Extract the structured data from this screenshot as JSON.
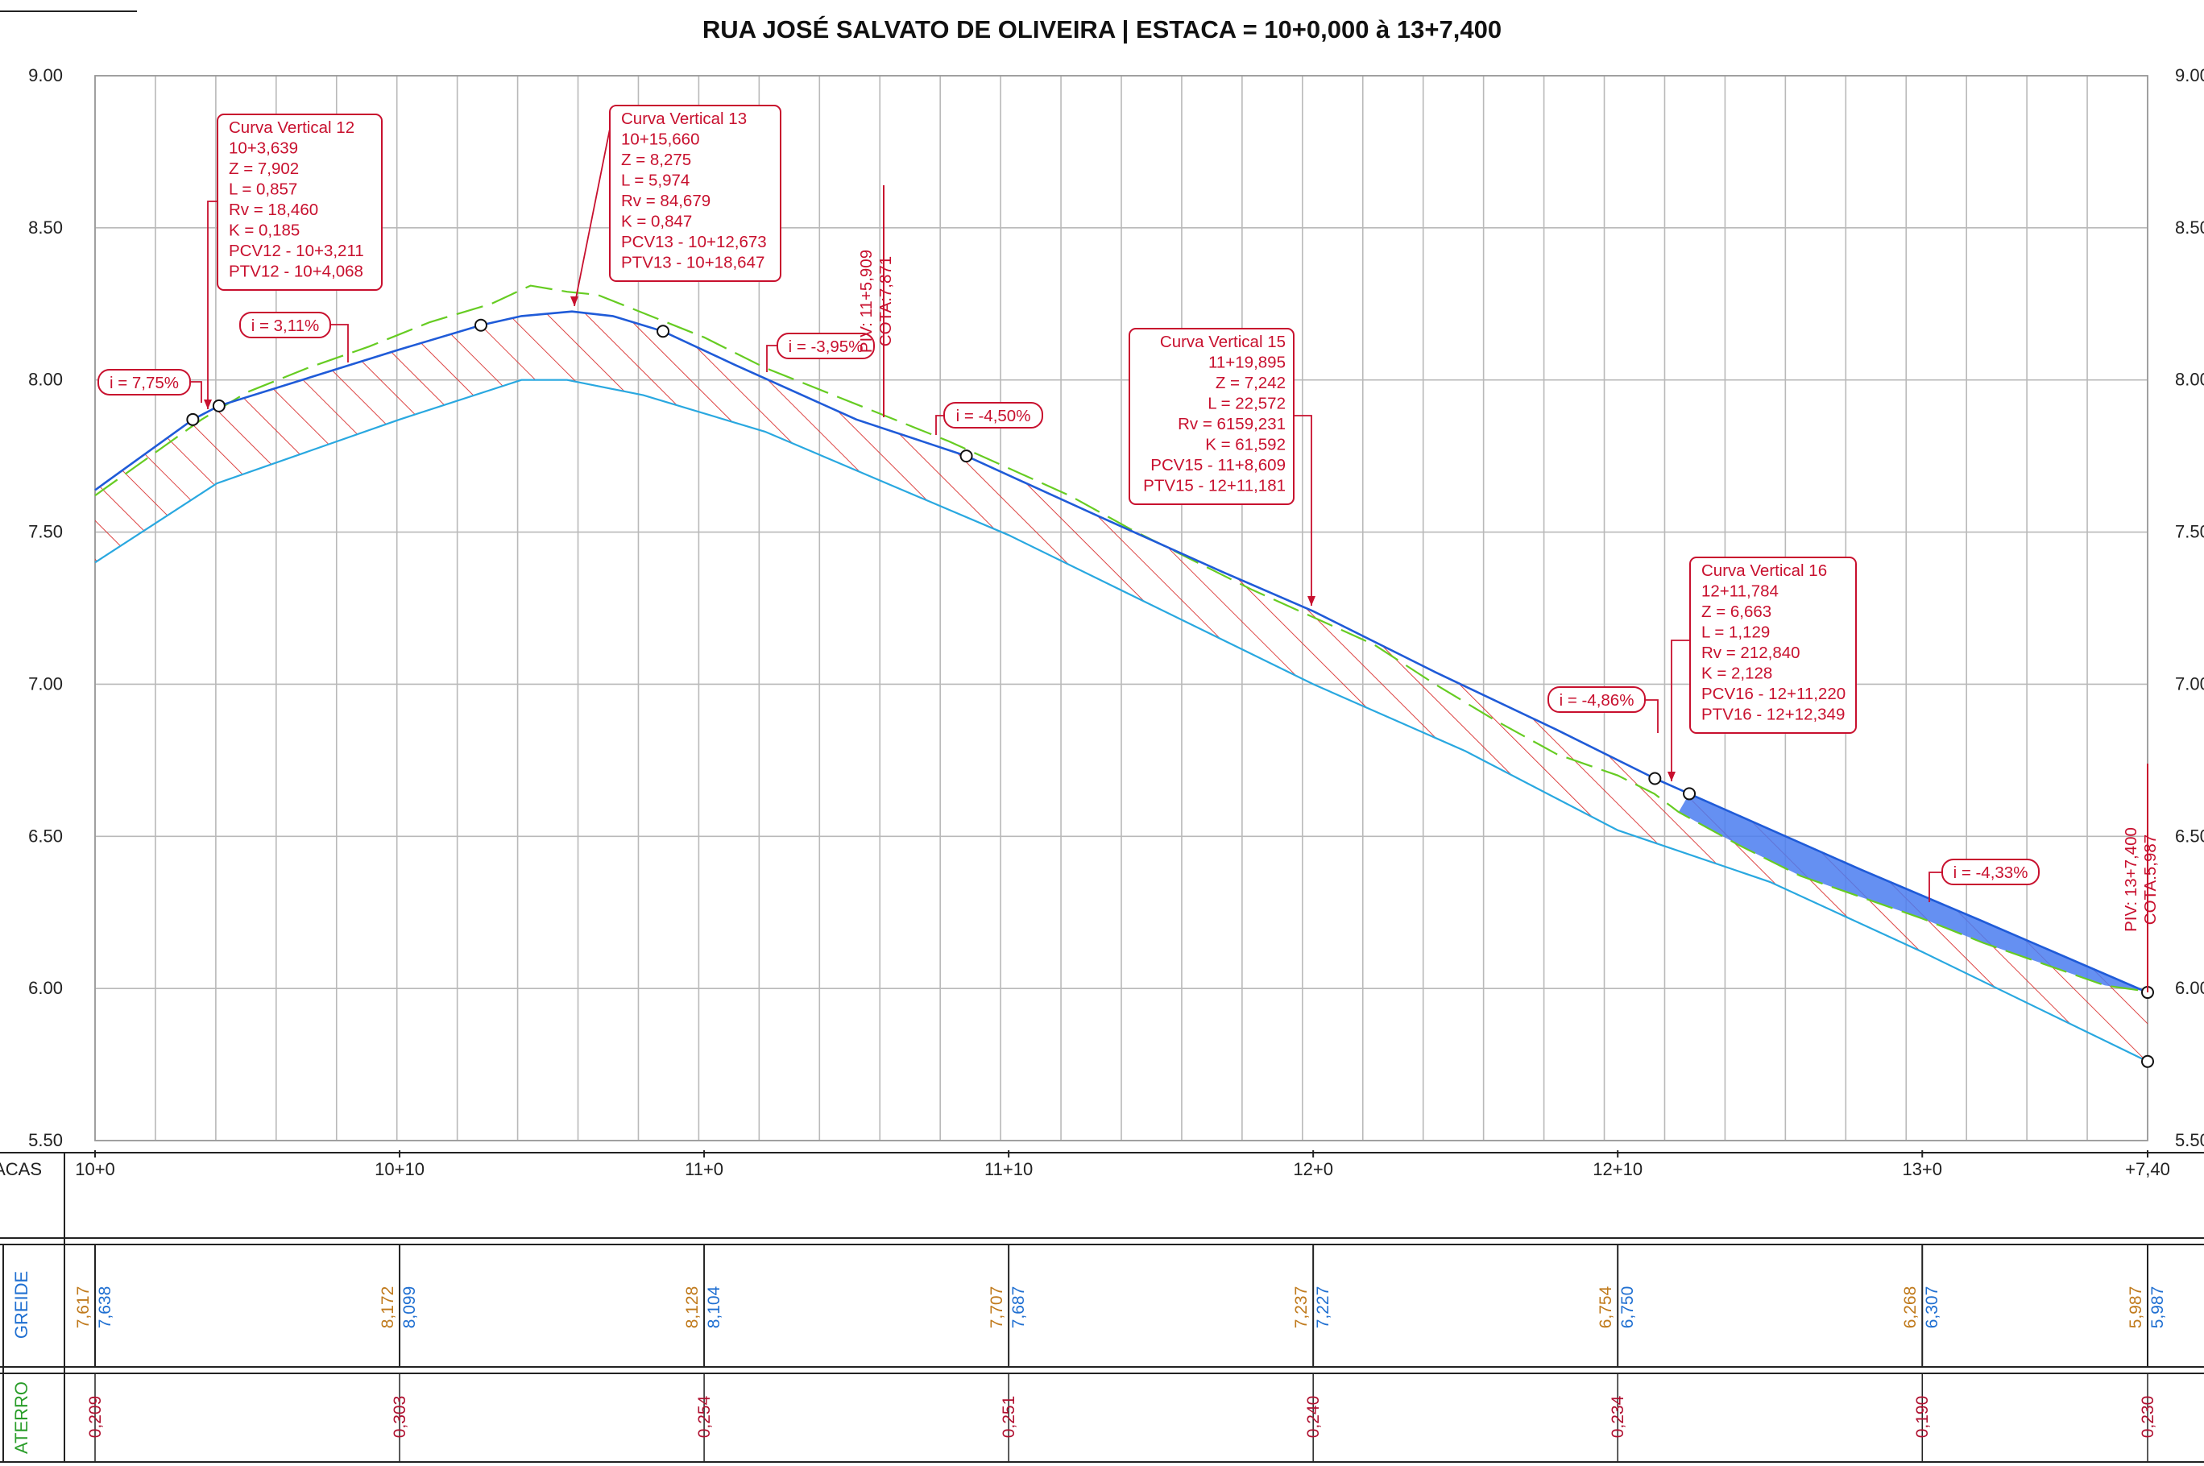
{
  "title": "RUA JOSÉ SALVATO DE OLIVEIRA | ESTACA = 10+0,000 à 13+7,400",
  "chart_data": {
    "type": "line",
    "y_ticks": [
      "9.00",
      "8.50",
      "8.00",
      "7.50",
      "7.00",
      "6.50",
      "6.00",
      "5.50"
    ],
    "ylim": [
      5.5,
      9.0
    ],
    "x_unit": "meters from 10+0",
    "xlim": [
      0,
      67.4
    ],
    "grid": "vertical every 2 m, horizontal every 0.5",
    "series": [
      {
        "key": "terrain",
        "color": "#66cc22",
        "dashed": true,
        "points": [
          [
            0,
            7.62
          ],
          [
            3.5,
            7.87
          ],
          [
            5,
            7.96
          ],
          [
            7,
            8.04
          ],
          [
            9,
            8.11
          ],
          [
            11,
            8.19
          ],
          [
            13,
            8.25
          ],
          [
            14.3,
            8.31
          ],
          [
            15.5,
            8.29
          ],
          [
            16.5,
            8.28
          ],
          [
            18,
            8.22
          ],
          [
            20,
            8.14
          ],
          [
            22,
            8.04
          ],
          [
            24,
            7.96
          ],
          [
            26,
            7.88
          ],
          [
            28,
            7.8
          ],
          [
            30,
            7.71
          ],
          [
            32,
            7.62
          ],
          [
            34,
            7.51
          ],
          [
            36,
            7.41
          ],
          [
            38,
            7.31
          ],
          [
            40,
            7.22
          ],
          [
            42,
            7.13
          ],
          [
            44,
            7.0
          ],
          [
            46,
            6.88
          ],
          [
            48,
            6.77
          ],
          [
            50,
            6.7
          ],
          [
            51.2,
            6.64
          ],
          [
            52,
            6.58
          ],
          [
            54,
            6.47
          ],
          [
            56,
            6.37
          ],
          [
            58,
            6.3
          ],
          [
            60,
            6.23
          ],
          [
            62,
            6.15
          ],
          [
            64,
            6.08
          ],
          [
            66,
            6.01
          ],
          [
            67.4,
            5.99
          ]
        ]
      },
      {
        "key": "greide",
        "color": "#1f5bd8",
        "points": [
          [
            0,
            7.638
          ],
          [
            3.21,
            7.87
          ],
          [
            4.07,
            7.915
          ],
          [
            10,
            8.1
          ],
          [
            12.67,
            8.18
          ],
          [
            14,
            8.21
          ],
          [
            15.66,
            8.225
          ],
          [
            17,
            8.21
          ],
          [
            18.65,
            8.16
          ],
          [
            21,
            8.05
          ],
          [
            25,
            7.87
          ],
          [
            28.61,
            7.75
          ],
          [
            33,
            7.55
          ],
          [
            37,
            7.37
          ],
          [
            40,
            7.24
          ],
          [
            44,
            7.04
          ],
          [
            48,
            6.85
          ],
          [
            51.22,
            6.69
          ],
          [
            52.35,
            6.64
          ],
          [
            58,
            6.39
          ],
          [
            62,
            6.22
          ],
          [
            67.4,
            5.987
          ]
        ]
      },
      {
        "key": "subgrade",
        "color": "#29a8e0",
        "points": [
          [
            0,
            7.4
          ],
          [
            4,
            7.66
          ],
          [
            10,
            7.87
          ],
          [
            14,
            8.0
          ],
          [
            15.5,
            8.0
          ],
          [
            18,
            7.95
          ],
          [
            22,
            7.83
          ],
          [
            30,
            7.49
          ],
          [
            40,
            7.0
          ],
          [
            45,
            6.78
          ],
          [
            50,
            6.52
          ],
          [
            55,
            6.35
          ],
          [
            60,
            6.12
          ],
          [
            67.4,
            5.76
          ]
        ]
      }
    ],
    "annotations": [
      {
        "key": "cv12",
        "lines": [
          "Curva Vertical 12",
          "10+3,639",
          "Z = 7,902",
          "L = 0,857",
          "Rv = 18,460",
          "K = 0,185",
          "PCV12 - 10+3,211",
          "PTV12 - 10+4,068"
        ],
        "align": "start"
      },
      {
        "key": "cv13",
        "lines": [
          "Curva Vertical 13",
          "10+15,660",
          "Z = 8,275",
          "L = 5,974",
          "Rv = 84,679",
          "K = 0,847",
          "PCV13 - 10+12,673",
          "PTV13 - 10+18,647"
        ],
        "align": "start"
      },
      {
        "key": "cv15",
        "lines": [
          "Curva Vertical 15",
          "11+19,895",
          "Z = 7,242",
          "L = 22,572",
          "Rv = 6159,231",
          "K = 61,592",
          "PCV15 - 11+8,609",
          "PTV15 - 12+11,181"
        ],
        "align": "end"
      },
      {
        "key": "cv16",
        "lines": [
          "Curva Vertical 16",
          "12+11,784",
          "Z = 6,663",
          "L = 1,129",
          "Rv = 212,840",
          "K = 2,128",
          "PCV16 - 12+11,220",
          "PTV16 - 12+12,349"
        ],
        "align": "start"
      }
    ],
    "slopes": [
      "i = 7,75%",
      "i = 3,11%",
      "i = -3,95%",
      "i = -4,50%",
      "i = -4,86%",
      "i = -4,33%"
    ],
    "piv_labels": [
      {
        "lines": [
          "PIV: 11+5,909",
          "COTA:7,871"
        ]
      },
      {
        "lines": [
          "PIV: 13+7,400",
          "COTA:5,987"
        ]
      }
    ]
  },
  "table": {
    "estacas_label": "ACAS",
    "greide_label": "GREIDE",
    "aterro_label": "ATERRO",
    "stations": [
      "10+0",
      "10+10",
      "11+0",
      "11+10",
      "12+0",
      "12+10",
      "13+0",
      "+7,40"
    ],
    "terreno_values": [
      "7,617",
      "8,172",
      "8,128",
      "7,707",
      "7,237",
      "6,754",
      "6,268",
      "5,987"
    ],
    "greide_values": [
      "7,638",
      "8,099",
      "8,104",
      "7,687",
      "7,227",
      "6,750",
      "6,307",
      "5,987"
    ],
    "aterro_values": [
      "0,209",
      "0,303",
      "0,254",
      "0,251",
      "0,240",
      "0,234",
      "0,190",
      "0,230"
    ]
  },
  "colors": {
    "terrain": "#66cc22",
    "greide": "#1f5bd8",
    "subgrade": "#29a8e0",
    "annotation": "#c8102e",
    "terreno_text": "#c07a1c",
    "greide_text": "#1f6fd1",
    "aterro_text": "#b01030",
    "aterro_label": "#2a9d2a"
  }
}
